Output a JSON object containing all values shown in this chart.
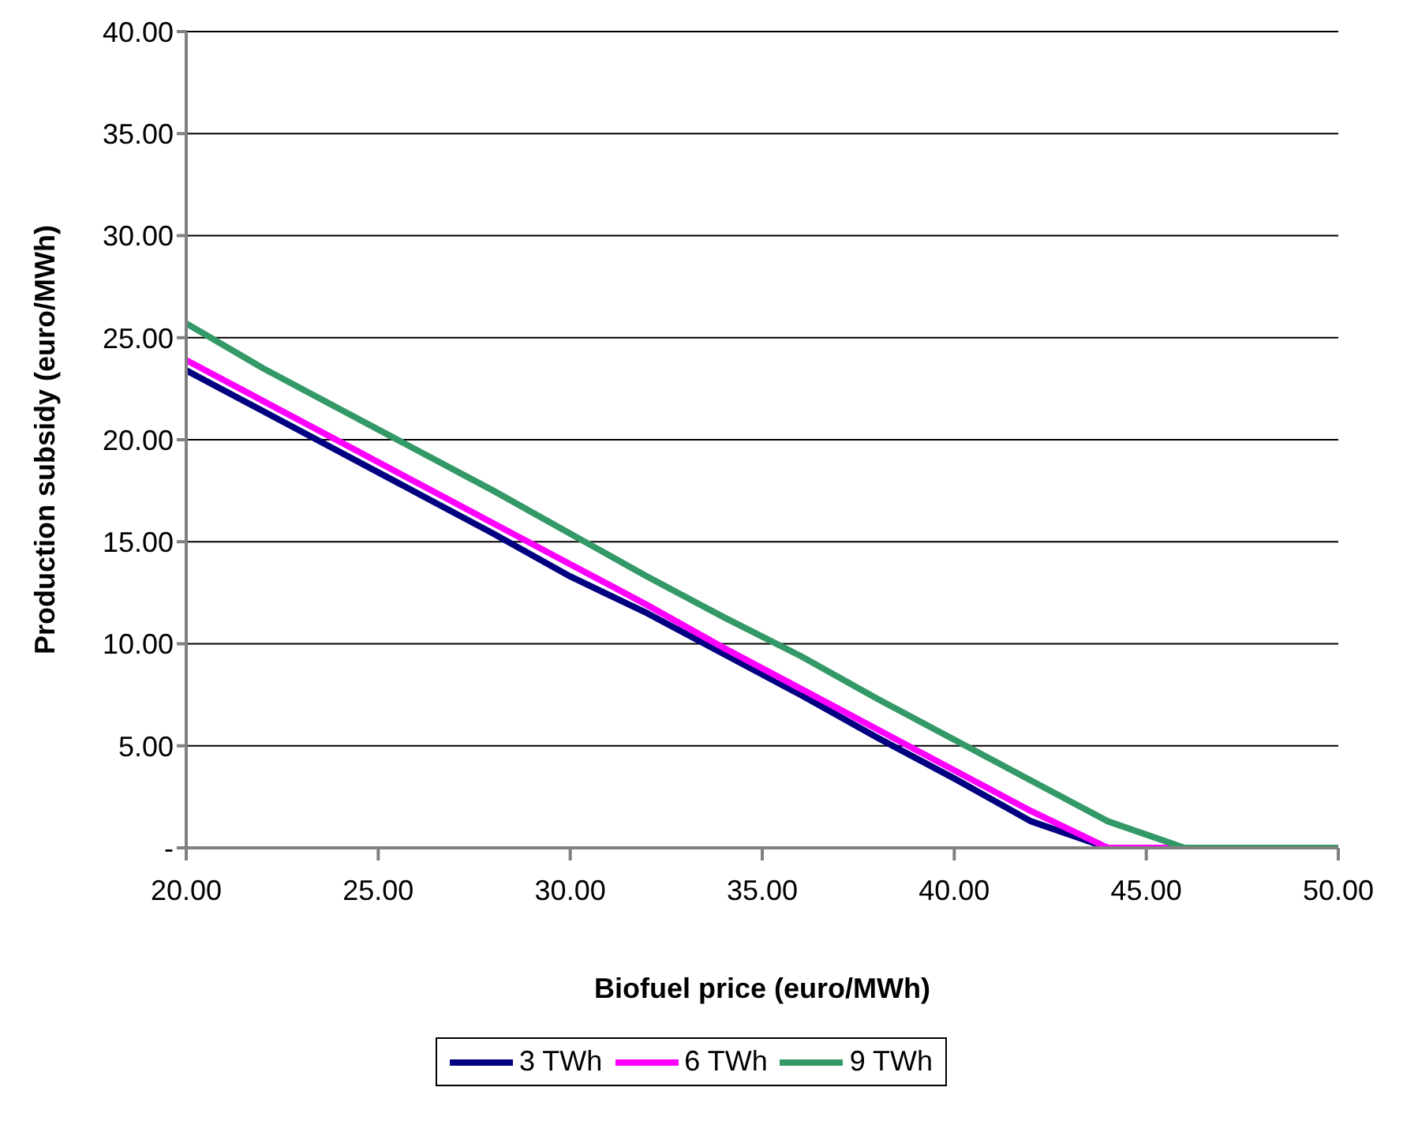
{
  "chart_data": {
    "type": "line",
    "xlabel": "Biofuel price (euro/MWh)",
    "ylabel": "Production subsidy (euro/MWh)",
    "x": [
      20,
      22,
      24,
      26,
      28,
      30,
      32,
      34,
      36,
      38,
      40,
      42,
      44,
      46,
      48,
      50
    ],
    "series": [
      {
        "name": "3 TWh",
        "color": "#000080",
        "values": [
          23.4,
          21.4,
          19.4,
          17.4,
          15.4,
          13.3,
          11.5,
          9.5,
          7.5,
          5.4,
          3.4,
          1.3,
          0,
          0,
          null,
          null
        ]
      },
      {
        "name": "6 TWh",
        "color": "#ff00ff",
        "values": [
          23.9,
          21.9,
          19.9,
          17.9,
          15.9,
          13.9,
          11.9,
          9.8,
          7.8,
          5.8,
          3.8,
          1.8,
          0,
          0,
          0,
          0
        ]
      },
      {
        "name": "9 TWh",
        "color": "#339966",
        "values": [
          25.7,
          23.5,
          21.5,
          19.5,
          17.5,
          15.4,
          13.3,
          11.3,
          9.4,
          7.3,
          5.3,
          3.3,
          1.3,
          0,
          0,
          0
        ]
      }
    ],
    "xlim": [
      20,
      50
    ],
    "xticks": [
      {
        "value": 20,
        "label": "20.00"
      },
      {
        "value": 25,
        "label": "25.00"
      },
      {
        "value": 30,
        "label": "30.00"
      },
      {
        "value": 35,
        "label": "35.00"
      },
      {
        "value": 40,
        "label": "40.00"
      },
      {
        "value": 45,
        "label": "45.00"
      },
      {
        "value": 50,
        "label": "50.00"
      }
    ],
    "ylim": [
      0,
      40
    ],
    "yticks": [
      {
        "value": 0,
        "label": "-"
      },
      {
        "value": 5,
        "label": "5.00"
      },
      {
        "value": 10,
        "label": "10.00"
      },
      {
        "value": 15,
        "label": "15.00"
      },
      {
        "value": 20,
        "label": "20.00"
      },
      {
        "value": 25,
        "label": "25.00"
      },
      {
        "value": 30,
        "label": "30.00"
      },
      {
        "value": 35,
        "label": "35.00"
      },
      {
        "value": 40,
        "label": "40.00"
      }
    ],
    "grid": "y",
    "legend": "bottom",
    "marker": "none",
    "line_style": "solid"
  }
}
